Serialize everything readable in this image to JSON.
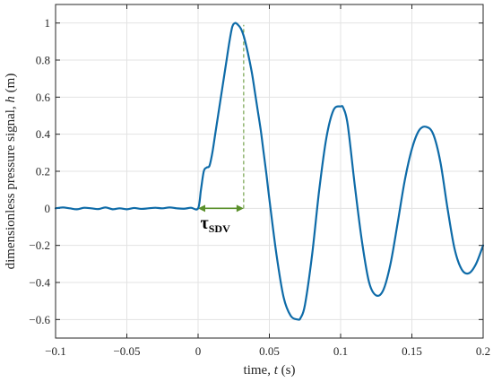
{
  "chart_data": {
    "type": "line",
    "xlabel": {
      "prefix": "time, ",
      "var": "t",
      "suffix": " (s)"
    },
    "ylabel": {
      "prefix": "dimensionless pressure signal, ",
      "var": "h",
      "suffix": " (m)"
    },
    "xlim": [
      -0.1,
      0.2
    ],
    "ylim": [
      -0.7,
      1.1
    ],
    "xticks": [
      -0.1,
      -0.05,
      0,
      0.05,
      0.1,
      0.15,
      0.2
    ],
    "xtick_labels": [
      "−0.1",
      "−0.05",
      "0",
      "0.05",
      "0.1",
      "0.15",
      "0.2"
    ],
    "yticks": [
      -0.6,
      -0.4,
      -0.2,
      0,
      0.2,
      0.4,
      0.6,
      0.8,
      1
    ],
    "ytick_labels": [
      "−0.6",
      "−0.4",
      "−0.2",
      "0",
      "0.2",
      "0.4",
      "0.6",
      "0.8",
      "1"
    ],
    "grid": true,
    "series": [
      {
        "color": "#0e6ba8",
        "x": [
          -0.1,
          -0.095,
          -0.09,
          -0.085,
          -0.08,
          -0.075,
          -0.07,
          -0.065,
          -0.06,
          -0.055,
          -0.05,
          -0.045,
          -0.04,
          -0.035,
          -0.03,
          -0.025,
          -0.02,
          -0.015,
          -0.01,
          -0.005,
          0,
          0.002,
          0.004,
          0.006,
          0.008,
          0.01,
          0.012,
          0.014,
          0.016,
          0.018,
          0.02,
          0.022,
          0.024,
          0.026,
          0.028,
          0.03,
          0.032,
          0.034,
          0.036,
          0.038,
          0.04,
          0.042,
          0.044,
          0.046,
          0.048,
          0.05,
          0.055,
          0.06,
          0.065,
          0.07,
          0.072,
          0.075,
          0.08,
          0.085,
          0.09,
          0.095,
          0.1,
          0.102,
          0.105,
          0.11,
          0.115,
          0.12,
          0.125,
          0.13,
          0.135,
          0.14,
          0.145,
          0.15,
          0.155,
          0.16,
          0.165,
          0.17,
          0.175,
          0.18,
          0.185,
          0.19,
          0.195,
          0.2
        ],
        "y": [
          0,
          0.005,
          0,
          -0.005,
          0.003,
          0,
          -0.004,
          0.005,
          -0.005,
          0,
          -0.005,
          0.002,
          -0.003,
          0,
          0.003,
          0,
          0.005,
          0,
          -0.002,
          0.003,
          0,
          0.1,
          0.2,
          0.22,
          0.23,
          0.3,
          0.4,
          0.5,
          0.6,
          0.7,
          0.8,
          0.9,
          0.98,
          1.0,
          0.99,
          0.97,
          0.93,
          0.87,
          0.8,
          0.72,
          0.62,
          0.52,
          0.42,
          0.3,
          0.18,
          0.05,
          -0.25,
          -0.48,
          -0.58,
          -0.6,
          -0.59,
          -0.52,
          -0.25,
          0.1,
          0.38,
          0.53,
          0.55,
          0.54,
          0.45,
          0.12,
          -0.18,
          -0.4,
          -0.47,
          -0.44,
          -0.3,
          -0.08,
          0.15,
          0.32,
          0.42,
          0.44,
          0.4,
          0.25,
          0.0,
          -0.22,
          -0.33,
          -0.35,
          -0.3,
          -0.2
        ]
      }
    ],
    "annotations": {
      "dashed_line": {
        "x": 0.032,
        "y_from": 0,
        "y_to": 0.99,
        "color": "#5a8f2a"
      },
      "double_arrow": {
        "x_from": 0,
        "x_to": 0.032,
        "y": 0,
        "color": "#5a8f2a"
      },
      "tau_label": {
        "main": "τ",
        "sub": "SDV",
        "x": 0.0016,
        "y": -0.11
      }
    }
  }
}
